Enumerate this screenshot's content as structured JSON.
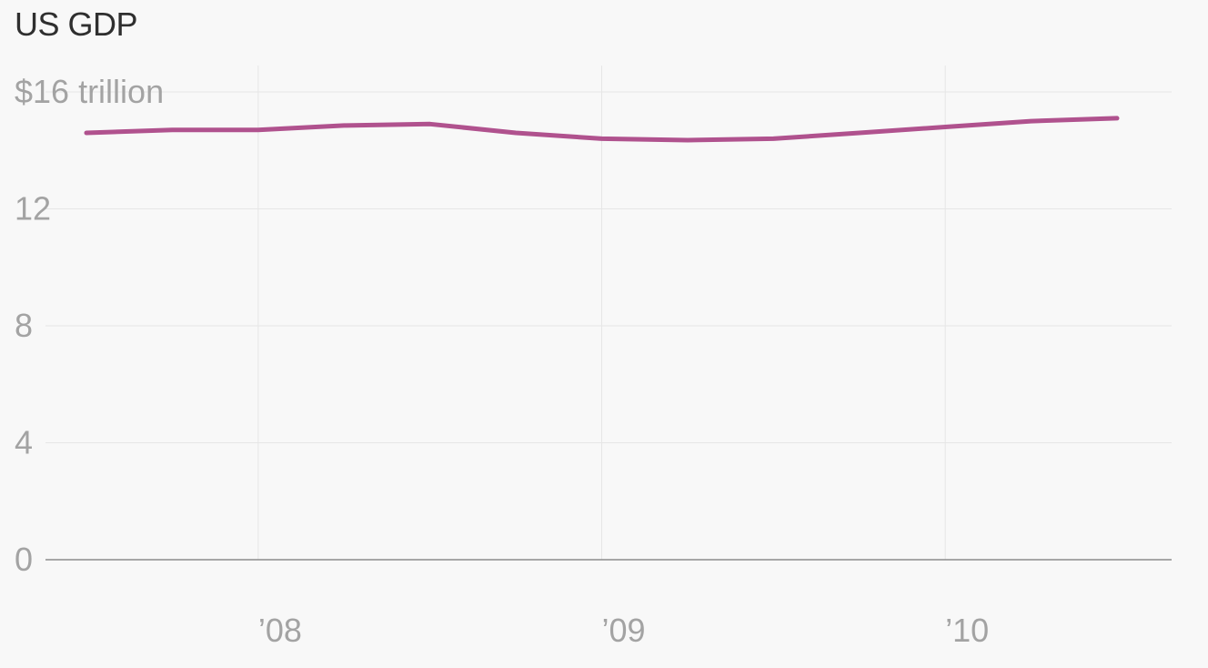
{
  "chart_data": {
    "type": "line",
    "title": "US GDP",
    "xlabel": "",
    "ylabel": "",
    "x_unit": "year",
    "xlim": [
      2007.5,
      2010.65
    ],
    "ylim": [
      0,
      17.5
    ],
    "y_ticks": [
      {
        "value": 16,
        "label": "$16 trillion"
      },
      {
        "value": 12,
        "label": "12"
      },
      {
        "value": 8,
        "label": "8"
      },
      {
        "value": 4,
        "label": "4"
      },
      {
        "value": 0,
        "label": "0"
      }
    ],
    "x_ticks": [
      {
        "value": 2008,
        "label": "’08"
      },
      {
        "value": 2009,
        "label": "’09"
      },
      {
        "value": 2010,
        "label": "’10"
      }
    ],
    "grid": true,
    "series": [
      {
        "color": "#b0528e",
        "points": [
          {
            "x": 2007.5,
            "y": 14.6
          },
          {
            "x": 2007.75,
            "y": 14.7
          },
          {
            "x": 2008.0,
            "y": 14.7
          },
          {
            "x": 2008.25,
            "y": 14.85
          },
          {
            "x": 2008.5,
            "y": 14.9
          },
          {
            "x": 2008.75,
            "y": 14.6
          },
          {
            "x": 2009.0,
            "y": 14.4
          },
          {
            "x": 2009.25,
            "y": 14.35
          },
          {
            "x": 2009.5,
            "y": 14.4
          },
          {
            "x": 2009.75,
            "y": 14.6
          },
          {
            "x": 2010.0,
            "y": 14.8
          },
          {
            "x": 2010.25,
            "y": 15.0
          },
          {
            "x": 2010.5,
            "y": 15.1
          }
        ]
      }
    ]
  }
}
